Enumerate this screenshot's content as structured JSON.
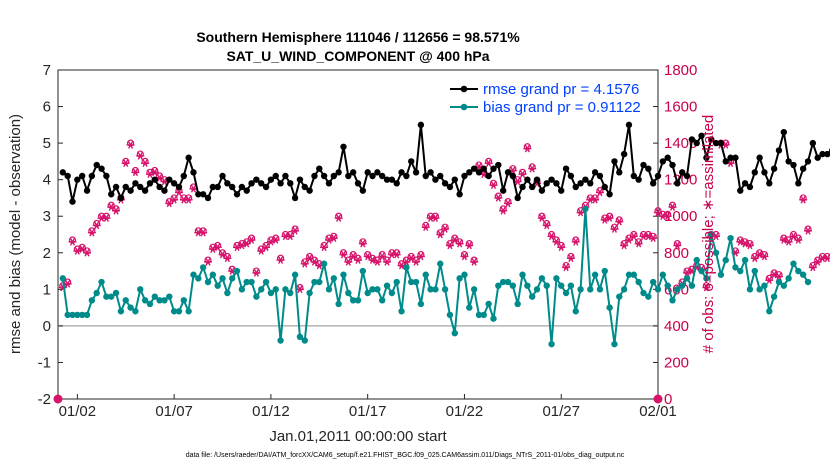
{
  "chart_data": {
    "type": "line",
    "title": "Southern Hemisphere 111046 / 112656 = 98.571%",
    "subtitle": "SAT_U_WIND_COMPONENT @ 400 hPa",
    "xlabel": "Jan.01,2011 00:00:00 start",
    "ylabel": "rmse and bias (model - observation)",
    "ylabel_right": "# of obs: o=possible; ∗=assimilated",
    "x_ticks": [
      "01/02",
      "01/07",
      "01/12",
      "01/17",
      "01/22",
      "01/27",
      "02/01"
    ],
    "xlim_days": [
      0,
      31
    ],
    "x_tick_days": [
      1,
      6,
      11,
      16,
      21,
      26,
      31
    ],
    "y_ticks": [
      "-2",
      "-1",
      "0",
      "1",
      "2",
      "3",
      "4",
      "5",
      "6",
      "7"
    ],
    "ylim": [
      -2,
      7
    ],
    "y2_ticks": [
      "0",
      "200",
      "400",
      "600",
      "800",
      "1000",
      "1200",
      "1400",
      "1600",
      "1800"
    ],
    "y2lim": [
      0,
      1800
    ],
    "legend_placement": "top-right",
    "grid": false,
    "footer": "data file: /Users/raeder/DAI/ATM_forcXX/CAM6_setup/f.e21.FHIST_BGC.f09_025.CAM6assim.011/Diags_NTrS_2011-01/obs_diag_output.nc",
    "colors": {
      "rmse": "#000000",
      "bias": "#008b8b",
      "obs": "#d6136b",
      "zero_line": "#b3b3b3"
    },
    "series": [
      {
        "name": "rmse grand pr = 4.1576",
        "role": "rmse",
        "start_day": 0.25,
        "step_days": 0.25,
        "values": [
          4.2,
          4.1,
          3.4,
          4.0,
          4.1,
          3.7,
          4.1,
          4.4,
          4.3,
          4.1,
          3.6,
          3.8,
          3.5,
          3.8,
          3.7,
          3.9,
          3.8,
          3.7,
          3.9,
          4.0,
          3.8,
          3.7,
          4.0,
          3.9,
          3.8,
          4.1,
          4.6,
          4.2,
          3.6,
          3.6,
          3.5,
          3.8,
          3.8,
          4.1,
          3.9,
          3.8,
          3.6,
          3.8,
          3.7,
          3.9,
          4.0,
          3.9,
          3.8,
          4.0,
          4.1,
          3.9,
          4.1,
          3.9,
          3.5,
          4.0,
          3.8,
          3.7,
          4.1,
          4.3,
          4.1,
          3.9,
          4.1,
          4.2,
          4.9,
          4.1,
          4.2,
          3.9,
          3.7,
          4.2,
          4.1,
          4.2,
          4.1,
          4.0,
          4.0,
          3.9,
          4.2,
          4.1,
          4.5,
          4.2,
          5.5,
          4.1,
          4.2,
          4.0,
          4.1,
          3.9,
          3.8,
          4.0,
          3.6,
          4.1,
          4.2,
          4.3,
          4.2,
          4.3,
          4.1,
          4.3,
          4.4,
          3.7,
          4.2,
          4.1,
          3.5,
          3.8,
          4.0,
          3.8,
          4.0,
          3.7,
          3.9,
          4.0,
          3.9,
          3.7,
          4.3,
          4.1,
          3.8,
          3.9,
          4.0,
          3.9,
          4.2,
          4.1,
          3.8,
          3.6,
          4.5,
          4.2,
          4.7,
          5.5,
          4.1,
          4.0,
          4.4,
          4.3,
          3.9,
          4.1,
          4.5,
          4.6,
          4.4,
          3.9,
          4.2,
          4.1,
          5.1,
          5.0,
          5.2,
          4.6,
          5.1,
          5.0,
          5.0,
          4.5,
          4.6,
          4.6,
          3.7,
          3.9,
          3.8,
          4.2,
          4.6,
          4.2,
          3.9,
          4.3,
          4.8,
          5.3,
          4.5,
          4.4,
          3.9,
          4.3,
          4.5,
          5.0,
          4.6,
          4.7,
          4.7,
          4.8
        ]
      },
      {
        "name": "bias grand pr = 0.91122",
        "role": "bias",
        "start_day": 0.25,
        "step_days": 0.25,
        "values": [
          1.3,
          0.3,
          0.3,
          0.3,
          0.3,
          0.3,
          0.7,
          0.9,
          1.2,
          0.8,
          0.8,
          0.9,
          0.4,
          0.7,
          0.5,
          0.4,
          1.0,
          0.7,
          0.6,
          0.8,
          0.7,
          0.7,
          0.8,
          0.4,
          0.4,
          0.7,
          0.4,
          1.4,
          1.3,
          1.6,
          1.2,
          1.4,
          1.1,
          1.3,
          0.9,
          1.3,
          1.5,
          1.0,
          1.2,
          1.2,
          0.8,
          1.0,
          1.2,
          0.9,
          1.0,
          -0.4,
          1.0,
          0.9,
          1.4,
          -0.3,
          -0.4,
          0.9,
          1.2,
          1.2,
          1.7,
          1.0,
          1.3,
          0.6,
          1.4,
          0.9,
          0.7,
          0.7,
          1.5,
          0.9,
          1.0,
          1.0,
          0.7,
          1.1,
          0.9,
          1.2,
          0.4,
          1.6,
          1.2,
          1.2,
          0.6,
          1.4,
          1.0,
          1.0,
          1.7,
          1.0,
          0.3,
          -0.2,
          1.3,
          1.4,
          0.5,
          1.0,
          0.3,
          0.3,
          0.6,
          0.2,
          1.1,
          1.2,
          1.2,
          1.1,
          0.6,
          1.4,
          1.1,
          0.8,
          1.0,
          1.3,
          1.1,
          -0.5,
          1.3,
          1.1,
          0.9,
          1.1,
          0.4,
          1.0,
          3.2,
          1.0,
          1.4,
          1.0,
          1.5,
          0.5,
          -0.5,
          0.8,
          1.0,
          1.4,
          1.4,
          1.2,
          0.9,
          0.8,
          1.2,
          1.0,
          1.4,
          1.1,
          0.7,
          1.0,
          1.1,
          1.3,
          1.1,
          1.8,
          1.5,
          1.3,
          2.5,
          2.0,
          1.4,
          1.8,
          2.4,
          1.6,
          1.5,
          1.8,
          1.0,
          1.5,
          1.0,
          1.1,
          0.4,
          0.8,
          1.2,
          1.1,
          1.3,
          1.7,
          1.5,
          1.4,
          1.2
        ]
      },
      {
        "name": "o=possible",
        "role": "obs-possible",
        "marker": "circle",
        "start_day": 0.25,
        "step_days": 0.25,
        "values": [
          620,
          640,
          870,
          820,
          830,
          810,
          920,
          960,
          1000,
          1000,
          1060,
          1040,
          1100,
          1300,
          1400,
          1250,
          1340,
          1300,
          1240,
          1250,
          1220,
          1200,
          1080,
          1100,
          1140,
          1100,
          1100,
          1160,
          920,
          920,
          760,
          830,
          840,
          800,
          780,
          710,
          840,
          850,
          860,
          880,
          700,
          820,
          840,
          870,
          880,
          770,
          900,
          900,
          930,
          610,
          750,
          780,
          760,
          740,
          840,
          880,
          890,
          1000,
          800,
          760,
          790,
          770,
          860,
          790,
          770,
          760,
          790,
          760,
          800,
          800,
          740,
          760,
          780,
          760,
          790,
          950,
          1000,
          1000,
          910,
          940,
          850,
          880,
          860,
          790,
          850,
          760,
          1280,
          1240,
          1300,
          1180,
          1110,
          1040,
          1080,
          1260,
          1200,
          1240,
          1380,
          1270,
          1190,
          1000,
          960,
          900,
          870,
          840,
          730,
          780,
          870,
          1030,
          1060,
          1100,
          1100,
          1140,
          990,
          1000,
          940,
          980,
          850,
          880,
          900,
          860,
          900,
          900,
          890,
          1030,
          1010,
          1010,
          1060,
          850,
          640,
          700,
          710,
          730,
          720,
          620,
          900,
          900,
          1400,
          1400,
          1300,
          810,
          870,
          860,
          850,
          780,
          800,
          790,
          660,
          690,
          680,
          880,
          870,
          900,
          880,
          1100,
          930,
          730,
          760,
          780,
          780
        ]
      },
      {
        "name": "∗=assimilated",
        "role": "obs-assimilated",
        "marker": "asterisk",
        "start_day": 0.25,
        "step_days": 0.25,
        "values": [
          610,
          630,
          860,
          810,
          820,
          800,
          910,
          950,
          990,
          990,
          1050,
          1030,
          1090,
          1290,
          1390,
          1240,
          1330,
          1290,
          1230,
          1240,
          1210,
          1190,
          1070,
          1090,
          1130,
          1090,
          1090,
          1150,
          910,
          910,
          750,
          820,
          830,
          790,
          770,
          700,
          830,
          840,
          850,
          870,
          690,
          810,
          830,
          860,
          870,
          760,
          890,
          890,
          920,
          600,
          740,
          770,
          750,
          730,
          830,
          870,
          880,
          990,
          790,
          750,
          780,
          760,
          850,
          780,
          760,
          750,
          780,
          750,
          790,
          790,
          730,
          750,
          770,
          750,
          780,
          940,
          990,
          990,
          900,
          930,
          840,
          870,
          850,
          780,
          840,
          750,
          1270,
          1230,
          1290,
          1170,
          1100,
          1030,
          1070,
          1250,
          1190,
          1230,
          1370,
          1260,
          1180,
          990,
          950,
          890,
          860,
          830,
          720,
          770,
          860,
          1020,
          1050,
          1090,
          1090,
          1130,
          980,
          990,
          930,
          970,
          840,
          870,
          890,
          850,
          890,
          890,
          880,
          1020,
          1000,
          1000,
          1050,
          840,
          630,
          690,
          700,
          720,
          710,
          610,
          890,
          890,
          1390,
          1390,
          1290,
          800,
          860,
          850,
          840,
          770,
          790,
          780,
          650,
          680,
          670,
          870,
          860,
          890,
          870,
          1090,
          920,
          720,
          750,
          770,
          770
        ]
      },
      {
        "name": "",
        "role": "obs-endpoints",
        "values": [
          {
            "day": 0,
            "value": 0
          },
          {
            "day": 31,
            "value": 0
          }
        ]
      }
    ]
  }
}
